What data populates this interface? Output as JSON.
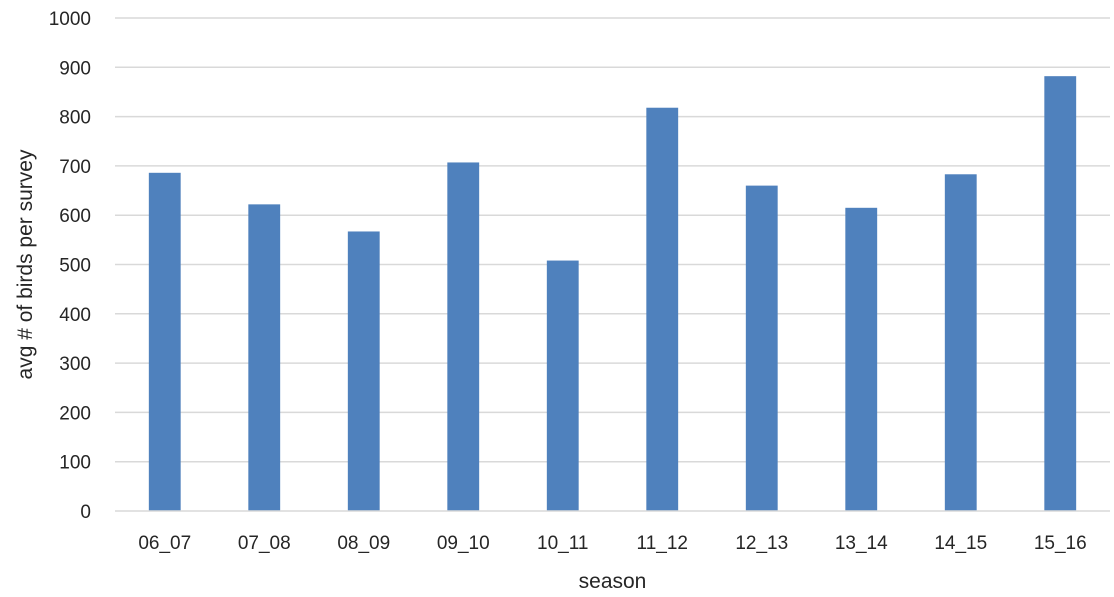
{
  "chart_data": {
    "type": "bar",
    "categories": [
      "06_07",
      "07_08",
      "08_09",
      "09_10",
      "10_11",
      "11_12",
      "12_13",
      "13_14",
      "14_15",
      "15_16"
    ],
    "values": [
      686,
      622,
      567,
      707,
      508,
      818,
      660,
      615,
      683,
      882
    ],
    "title": "",
    "xlabel": "season",
    "ylabel": "avg # of birds per survey",
    "ylim": [
      0,
      1000
    ],
    "yticks": [
      0,
      100,
      200,
      300,
      400,
      500,
      600,
      700,
      800,
      900,
      1000
    ],
    "grid": true,
    "bar_color": "#4f81bd",
    "grid_color": "#d9d9d9"
  }
}
